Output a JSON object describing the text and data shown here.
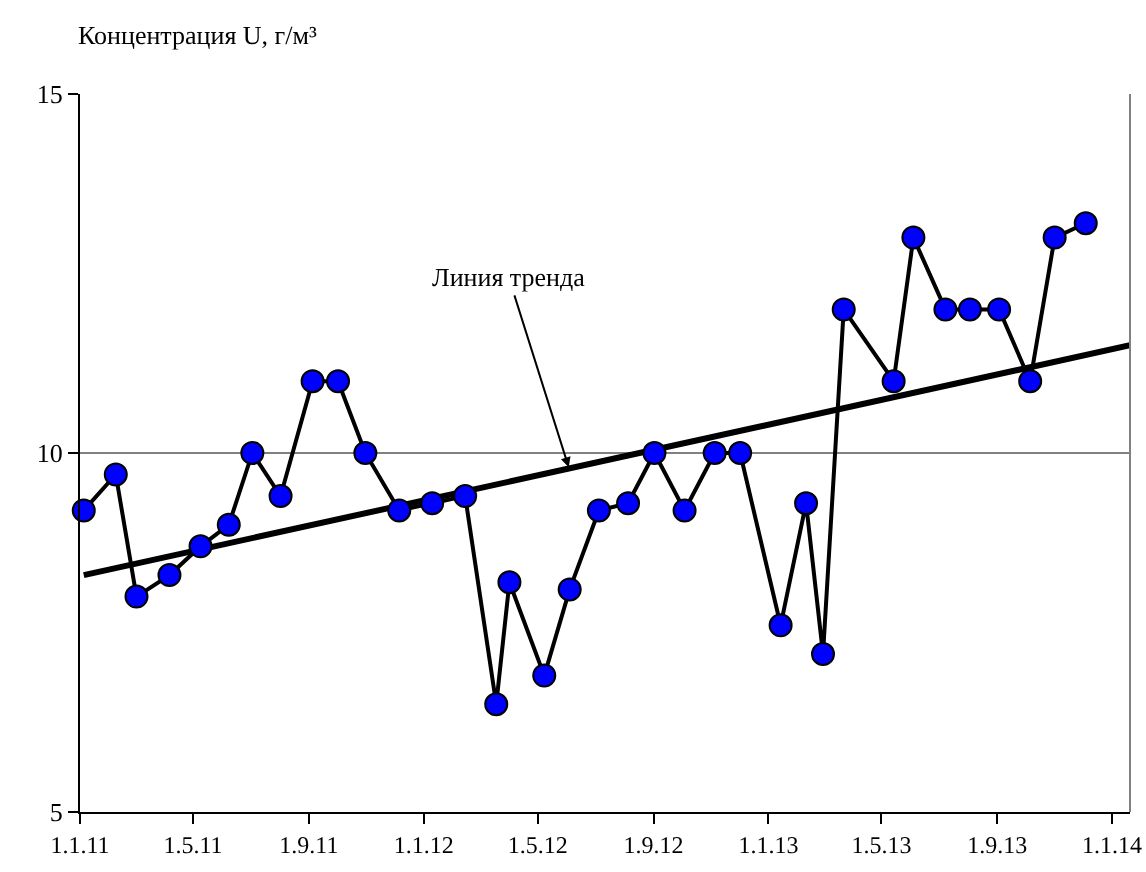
{
  "chart_data": {
    "type": "line",
    "ylabel": "Концентрация U, г/м³",
    "annotations": [
      {
        "text": "Линия тренда",
        "x": "2012-06-03",
        "y": 9.8
      }
    ],
    "x": [
      "2011-01-05",
      "2011-02-08",
      "2011-03-02",
      "2011-04-06",
      "2011-05-09",
      "2011-06-08",
      "2011-07-03",
      "2011-08-02",
      "2011-09-05",
      "2011-10-02",
      "2011-10-31",
      "2011-12-06",
      "2012-01-10",
      "2012-02-14",
      "2012-03-18",
      "2012-04-01",
      "2012-05-08",
      "2012-06-04",
      "2012-07-05",
      "2012-08-05",
      "2012-09-02",
      "2012-10-04",
      "2012-11-05",
      "2012-12-02",
      "2013-01-14",
      "2013-02-10",
      "2013-02-28",
      "2013-03-22",
      "2013-05-14",
      "2013-06-04",
      "2013-07-08",
      "2013-08-03",
      "2013-09-03",
      "2013-10-06",
      "2013-11-01",
      "2013-12-04"
    ],
    "series": [
      {
        "color": "#0000ff",
        "values": [
          9.2,
          9.7,
          8.0,
          8.3,
          8.7,
          9.0,
          10.0,
          9.4,
          11.0,
          11.0,
          10.0,
          9.2,
          9.3,
          9.4,
          6.5,
          8.2,
          6.9,
          8.1,
          9.2,
          9.3,
          10.0,
          9.2,
          10.0,
          10.0,
          7.6,
          9.3,
          7.2,
          12.0,
          11.0,
          13.0,
          12.0,
          12.0,
          12.0,
          11.0,
          13.0,
          13.2
        ]
      },
      {
        "type": "line",
        "color": "#000000",
        "marker": "none",
        "x": [
          "2011-01-05",
          "2014-01-20"
        ],
        "values": [
          8.3,
          11.5
        ]
      }
    ],
    "xlim": [
      "2011-01-01",
      "2014-01-20"
    ],
    "xticks": [
      {
        "value": "2011-01-01",
        "label": "1.1.11"
      },
      {
        "value": "2011-05-01",
        "label": "1.5.11"
      },
      {
        "value": "2011-09-01",
        "label": "1.9.11"
      },
      {
        "value": "2012-01-01",
        "label": "1.1.12"
      },
      {
        "value": "2012-05-01",
        "label": "1.5.12"
      },
      {
        "value": "2012-09-01",
        "label": "1.9.12"
      },
      {
        "value": "2013-01-01",
        "label": "1.1.13"
      },
      {
        "value": "2013-05-01",
        "label": "1.5.13"
      },
      {
        "value": "2013-09-01",
        "label": "1.9.13"
      },
      {
        "value": "2014-01-01",
        "label": "1.1.14"
      }
    ],
    "ylim": [
      5,
      15
    ],
    "yticks": [
      5,
      10,
      15
    ],
    "grid": "y",
    "marker": "circle",
    "line_style": "solid"
  }
}
